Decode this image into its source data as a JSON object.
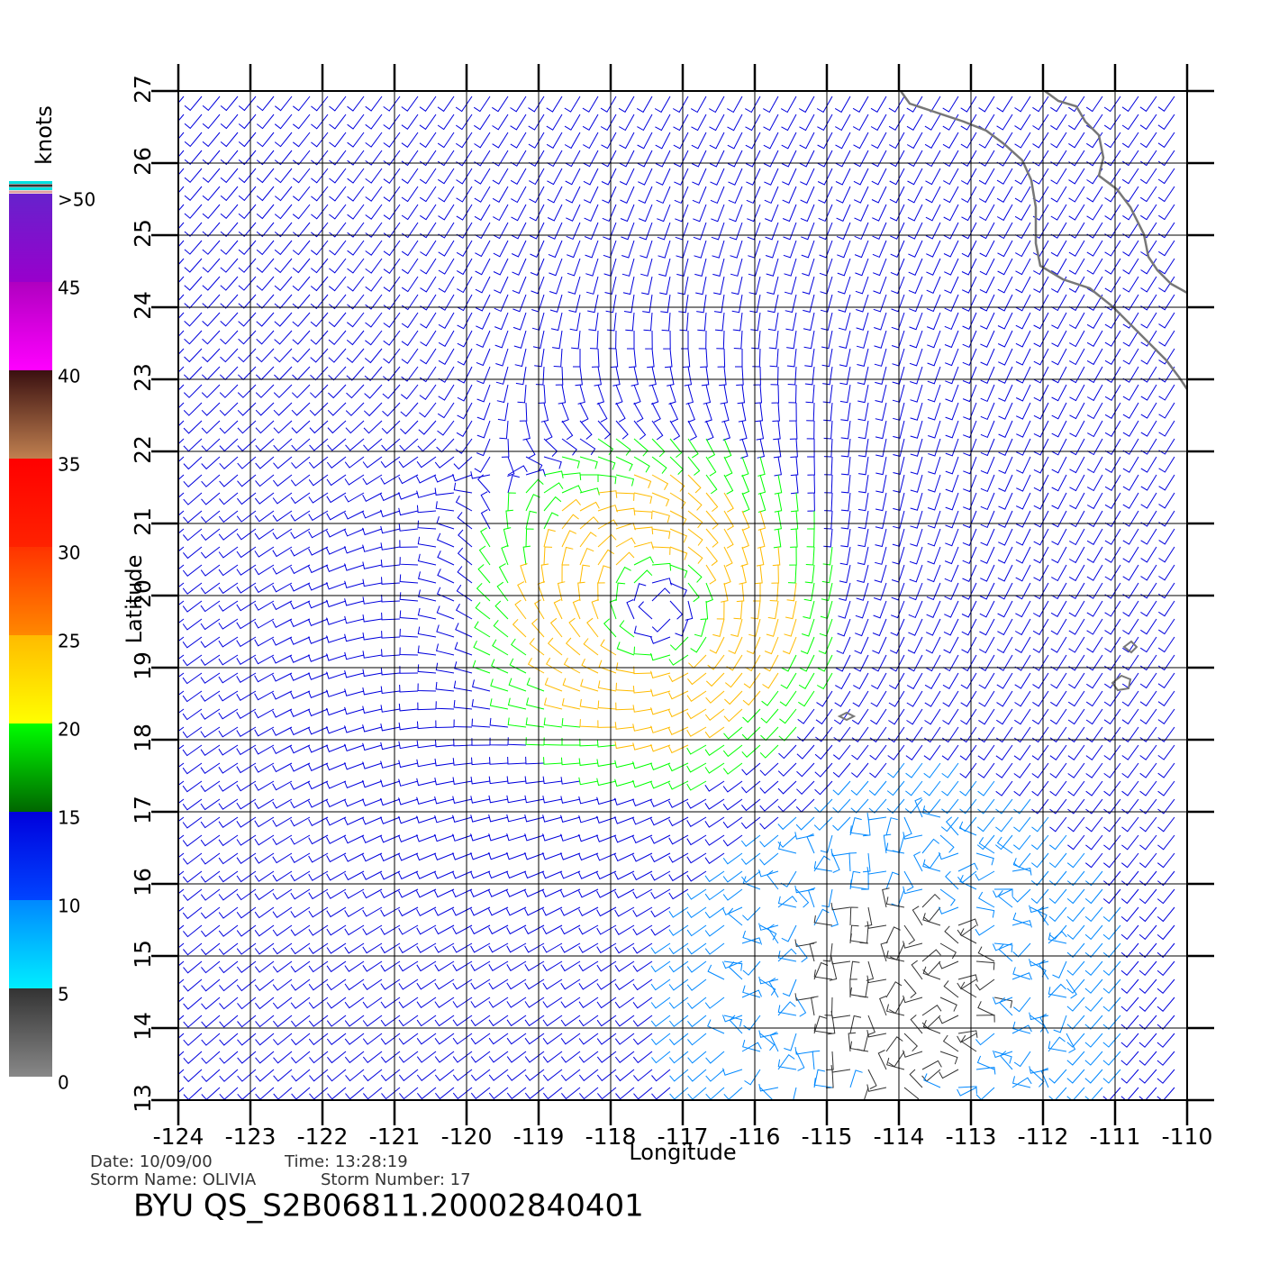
{
  "chart_data": {
    "type": "wind-map",
    "xlabel": "Longitude",
    "ylabel": "Latitude",
    "xlim": [
      -124,
      -110
    ],
    "ylim": [
      13,
      27
    ],
    "xticks": [
      -124,
      -123,
      -122,
      -121,
      -120,
      -119,
      -118,
      -117,
      -116,
      -115,
      -114,
      -113,
      -112,
      -111,
      -110
    ],
    "yticks": [
      13,
      14,
      15,
      16,
      17,
      18,
      19,
      20,
      21,
      22,
      23,
      24,
      25,
      26,
      27
    ],
    "grid": true,
    "colorbar": {
      "label": "knots",
      "lim": [
        0,
        50
      ],
      "ticks": [
        0,
        5,
        10,
        15,
        20,
        25,
        30,
        35,
        40,
        45,
        {
          "value": 50,
          "label": ">50"
        }
      ],
      "colors": [
        [
          "#888888",
          "#333333"
        ],
        [
          "#00eeff",
          "#0088ff"
        ],
        [
          "#0044ff",
          "#0000dd"
        ],
        [
          "#006600",
          "#00ff00"
        ],
        [
          "#ffff00",
          "#ffbb00"
        ],
        [
          "#ff8800",
          "#ff3300"
        ],
        [
          "#ff2200",
          "#ff0000"
        ],
        [
          "#c08050",
          "#3a1010"
        ],
        [
          "#ff00ff",
          "#b000c0"
        ],
        [
          "#9900cc",
          "#6622cc"
        ]
      ]
    },
    "info": {
      "date": "Date: 10/09/00",
      "time": "Time: 13:28:19",
      "storm_name": "Storm Name: OLIVIA",
      "storm_number": "Storm Number: 17",
      "title": "BYU QS_S2B06811.20002840401"
    }
  }
}
